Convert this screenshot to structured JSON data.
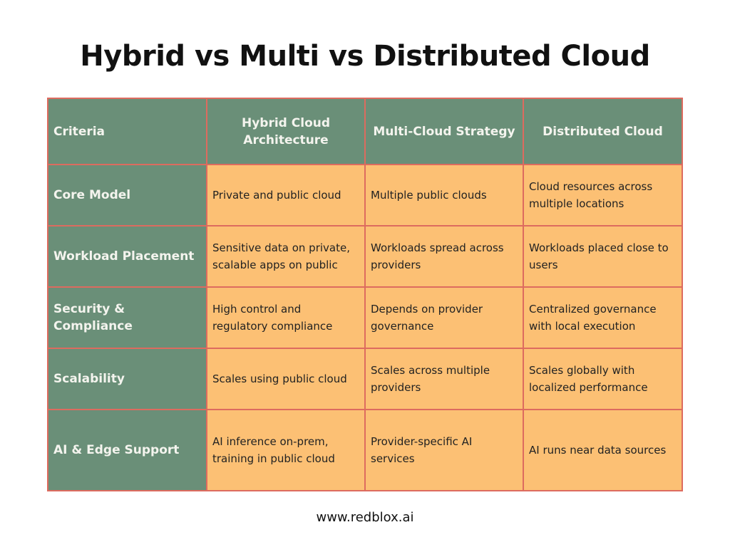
{
  "title": "Hybrid vs Multi vs Distributed Cloud",
  "headers": [
    "Criteria",
    "Hybrid Cloud Architecture",
    "Multi-Cloud Strategy",
    "Distributed Cloud"
  ],
  "rows": [
    [
      "Core Model",
      "Private and public cloud",
      "Multiple public clouds",
      "Cloud resources across multiple locations"
    ],
    [
      "Workload Placement",
      "Sensitive data on private, scalable apps on public",
      "Workloads spread across providers",
      "Workloads placed close to users"
    ],
    [
      "Security & Compliance",
      "High control and regulatory compliance",
      "Depends on provider governance",
      "Centralized governance with local execution"
    ],
    [
      "Scalability",
      "Scales using public cloud",
      "Scales across multiple providers",
      "Scales globally with localized performance"
    ],
    [
      "AI & Edge Support",
      "AI inference on-prem, training in public cloud",
      "Provider-specific AI services",
      "AI runs near data sources"
    ]
  ],
  "footer": "www.redblox.ai",
  "colors": {
    "header": "#6a8f78",
    "cell": "#fcc074",
    "border": "#dd6b5f"
  }
}
